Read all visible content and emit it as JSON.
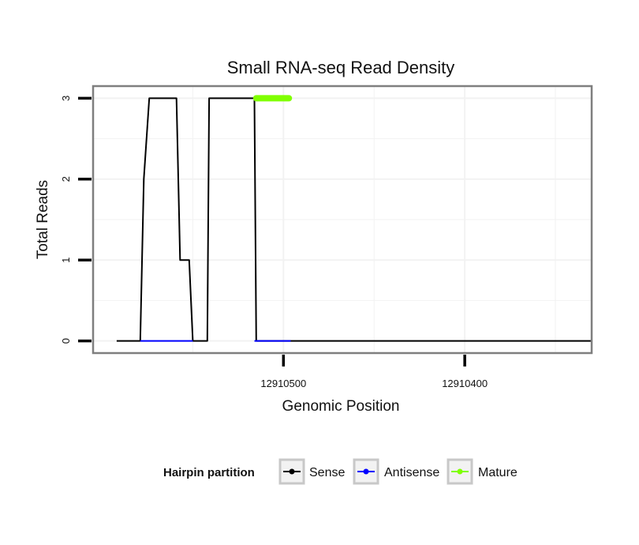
{
  "chart_data": {
    "type": "line",
    "title": "Small RNA-seq Read Density",
    "xlabel": "Genomic Position",
    "ylabel": "Total Reads",
    "x_reversed": true,
    "xlim": [
      12910605,
      12910330
    ],
    "ylim": [
      -0.15,
      3.15
    ],
    "x_ticks": [
      12910500,
      12910400
    ],
    "x_tick_labels": [
      "12910500",
      "12910400"
    ],
    "y_ticks": [
      0,
      1,
      2,
      3
    ],
    "y_tick_labels": [
      "0",
      "1",
      "2",
      "3"
    ],
    "grid": true,
    "legend_position": "bottom",
    "legend_title": "Hairpin partition",
    "series": [
      {
        "name": "Sense",
        "color": "#000000",
        "x": [
          12910592,
          12910579,
          12910577,
          12910574,
          12910559,
          12910557,
          12910552,
          12910550,
          12910542,
          12910541,
          12910516,
          12910515,
          12910497,
          12910496,
          12910330
        ],
        "y": [
          0,
          0,
          2,
          3,
          3,
          1,
          1,
          0,
          0,
          3,
          3,
          0,
          0,
          0,
          0
        ]
      },
      {
        "name": "Antisense",
        "color": "#0000ff",
        "x": [
          12910579,
          12910550,
          12910516,
          12910496
        ],
        "y": [
          0,
          0,
          0,
          0
        ]
      },
      {
        "name": "Mature",
        "color": "#80ff00",
        "x": [
          12910515,
          12910497
        ],
        "y": [
          3,
          3
        ]
      }
    ]
  }
}
